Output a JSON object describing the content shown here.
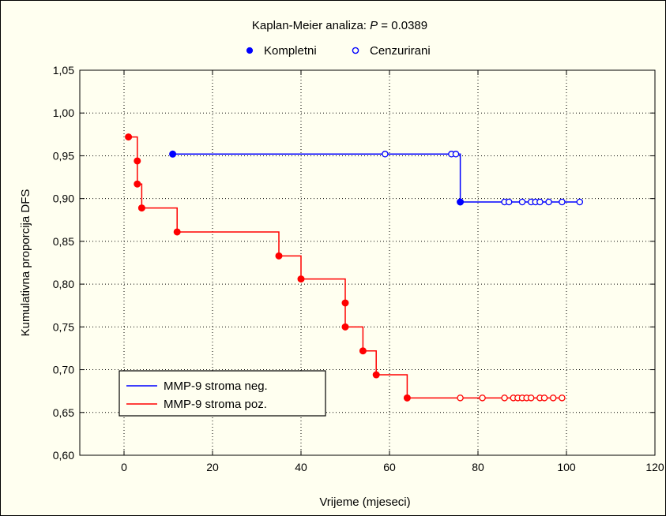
{
  "chart_data": {
    "type": "line",
    "title_prefix": "Kaplan-Meier analiza: ",
    "title_p_symbol": "P",
    "title_p_value": " = 0.0389",
    "marker_legend": [
      {
        "label": "Kompletni",
        "filled": true
      },
      {
        "label": "Cenzurirani",
        "filled": false
      }
    ],
    "xlabel": "Vrijeme (mjeseci)",
    "ylabel": "Kumulativna proporcija DFS",
    "xlim": [
      -10,
      120
    ],
    "ylim": [
      0.6,
      1.05
    ],
    "xticks": [
      0,
      20,
      40,
      60,
      80,
      100,
      120
    ],
    "yticks": [
      0.6,
      0.65,
      0.7,
      0.75,
      0.8,
      0.85,
      0.9,
      0.95,
      1.0,
      1.05
    ],
    "xtick_labels": [
      "0",
      "20",
      "40",
      "60",
      "80",
      "100",
      "120"
    ],
    "ytick_labels": [
      "0,60",
      "0,65",
      "0,70",
      "0,75",
      "0,80",
      "0,85",
      "0,90",
      "0,95",
      "1,00",
      "1,05"
    ],
    "grid": true,
    "legend_position": "bottom-left",
    "series": [
      {
        "name": "MMP-9 stroma neg.",
        "color": "#0000ff",
        "start": [
          11,
          0.952
        ],
        "events": [
          [
            76,
            0.896
          ]
        ],
        "censored": [
          [
            59,
            0.952
          ],
          [
            74,
            0.952
          ],
          [
            75,
            0.952
          ],
          [
            86,
            0.896
          ],
          [
            87,
            0.896
          ],
          [
            90,
            0.896
          ],
          [
            92,
            0.896
          ],
          [
            93,
            0.896
          ],
          [
            94,
            0.896
          ],
          [
            96,
            0.896
          ],
          [
            99,
            0.896
          ],
          [
            103,
            0.896
          ]
        ],
        "end_x": 103
      },
      {
        "name": "MMP-9 stroma poz.",
        "color": "#ff0000",
        "start": [
          1,
          0.972
        ],
        "events": [
          [
            3,
            0.944
          ],
          [
            3,
            0.917
          ],
          [
            4,
            0.889
          ],
          [
            12,
            0.861
          ],
          [
            35,
            0.833
          ],
          [
            40,
            0.806
          ],
          [
            50,
            0.778
          ],
          [
            50,
            0.75
          ],
          [
            54,
            0.722
          ],
          [
            57,
            0.694
          ],
          [
            64,
            0.667
          ]
        ],
        "censored": [
          [
            76,
            0.667
          ],
          [
            81,
            0.667
          ],
          [
            86,
            0.667
          ],
          [
            88,
            0.667
          ],
          [
            89,
            0.667
          ],
          [
            90,
            0.667
          ],
          [
            91,
            0.667
          ],
          [
            92,
            0.667
          ],
          [
            94,
            0.667
          ],
          [
            95,
            0.667
          ],
          [
            97,
            0.667
          ],
          [
            99,
            0.667
          ]
        ],
        "end_x": 99
      }
    ]
  }
}
